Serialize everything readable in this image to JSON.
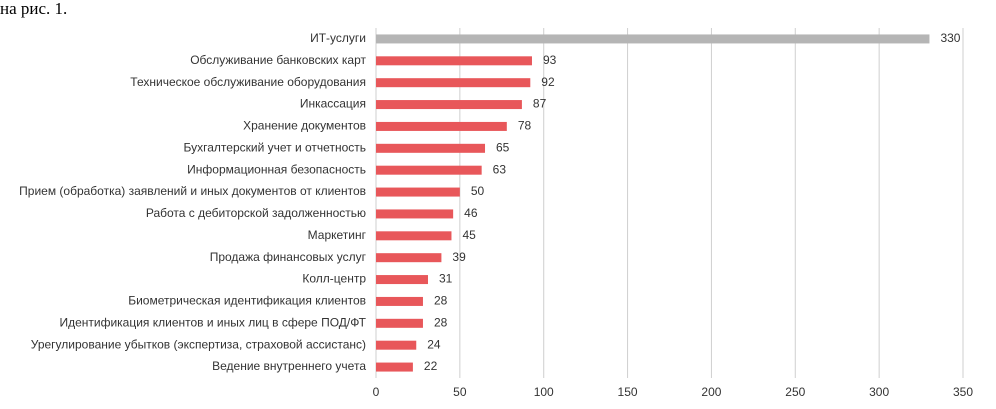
{
  "caption_fragment": "на рис. 1.",
  "chart_data": {
    "type": "barh",
    "categories": [
      "ИТ-услуги",
      "Обслуживание банковских карт",
      "Техническое обслуживание оборудования",
      "Инкассация",
      "Хранение документов",
      "Бухгалтерский учет и отчетность",
      "Информационная безопасность",
      "Прием (обработка) заявлений и иных документов от клиентов",
      "Работа с дебиторской задолженностью",
      "Маркетинг",
      "Продажа финансовых услуг",
      "Колл-центр",
      "Биометрическая идентификация клиентов",
      "Идентификация клиентов  и иных лиц в сфере  ПОД/ФТ",
      "Урегулирование убытков (экспертиза, страховой ассистанс)",
      "Ведение внутреннего учета"
    ],
    "values": [
      330,
      93,
      92,
      87,
      78,
      65,
      63,
      50,
      46,
      45,
      39,
      31,
      28,
      28,
      24,
      22
    ],
    "colors": [
      "#b5b5b5",
      "#e8575a",
      "#e8575a",
      "#e8575a",
      "#e8575a",
      "#e8575a",
      "#e8575a",
      "#e8575a",
      "#e8575a",
      "#e8575a",
      "#e8575a",
      "#e8575a",
      "#e8575a",
      "#e8575a",
      "#e8575a",
      "#e8575a"
    ],
    "xlim": [
      0,
      350
    ],
    "xticks": [
      0,
      50,
      100,
      150,
      200,
      250,
      300,
      350
    ],
    "grid": true
  }
}
